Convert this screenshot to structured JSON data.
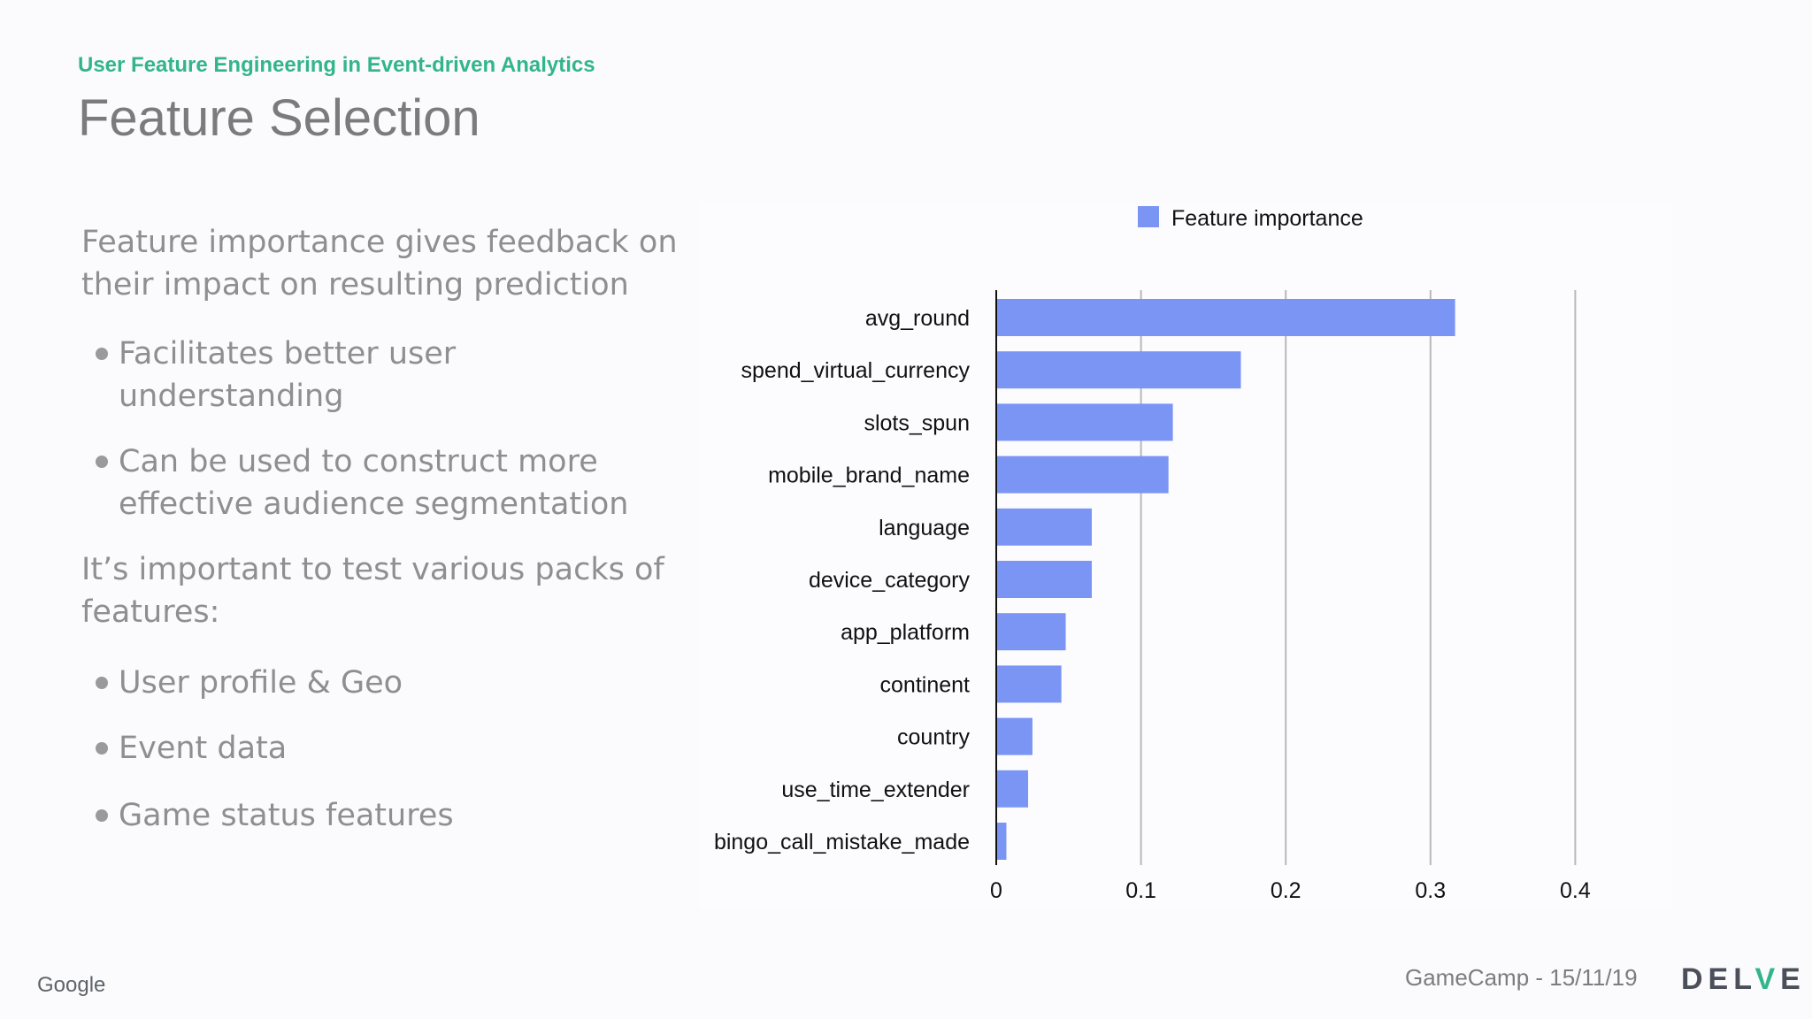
{
  "header": {
    "subtitle": "User Feature Engineering in Event-driven Analytics",
    "title": "Feature Selection"
  },
  "left": {
    "para1": "Feature importance gives feedback on their impact on resulting prediction",
    "bullets1": [
      "Facilitates better user understanding",
      "Can be used to construct more effective audience segmentation"
    ],
    "para2": "It’s important to test various packs of features:",
    "bullets2": [
      "User profile & Geo",
      "Event data",
      "Game status features"
    ]
  },
  "chart_data": {
    "type": "bar",
    "orientation": "horizontal",
    "title": "",
    "xlabel": "",
    "ylabel": "",
    "legend": {
      "label": "Feature importance",
      "position": "top"
    },
    "categories": [
      "avg_round",
      "spend_virtual_currency",
      "slots_spun",
      "mobile_brand_name",
      "language",
      "device_category",
      "app_platform",
      "continent",
      "country",
      "use_time_extender",
      "bingo_call_mistake_made"
    ],
    "values": [
      0.317,
      0.169,
      0.122,
      0.119,
      0.066,
      0.066,
      0.048,
      0.045,
      0.025,
      0.022,
      0.007
    ],
    "xlim": [
      0,
      0.45
    ],
    "ticks": [
      0,
      0.1,
      0.2,
      0.3,
      0.4
    ],
    "tick_labels": [
      "0",
      "0.1",
      "0.2",
      "0.3",
      "0.4"
    ],
    "color": "#7b95f5",
    "grid": true
  },
  "footer": {
    "google": "Google",
    "event": "GameCamp - 15/11/19",
    "logo_pre": "DEL",
    "logo_v": "V",
    "logo_post": "E"
  }
}
